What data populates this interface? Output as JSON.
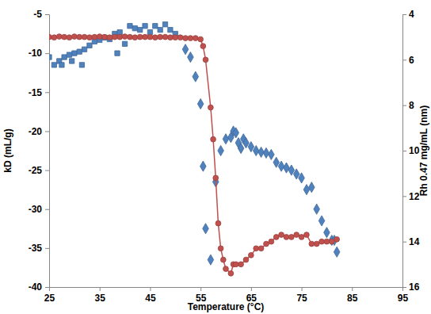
{
  "chart_data": {
    "type": "scatter",
    "x_label": "Temperature (°C)",
    "y_label": "kD (mL/g)",
    "y2_label": "Rh 0.47 mg/mL (nm)",
    "xlim": [
      25,
      95
    ],
    "xticks": [
      25,
      35,
      45,
      55,
      65,
      75,
      85,
      95
    ],
    "ylim": [
      -40,
      -5
    ],
    "yticks": [
      -40,
      -35,
      -30,
      -25,
      -20,
      -15,
      -10,
      -5
    ],
    "y2lim": [
      16,
      4
    ],
    "y2ticks": [
      4,
      6,
      8,
      10,
      12,
      14,
      16
    ],
    "grid": false,
    "series": [
      {
        "type": "scatter",
        "marker": "square",
        "color": "#4f81bd",
        "x": [
          25,
          26,
          27,
          27.5,
          28,
          29,
          29.5,
          30,
          31,
          31.5,
          32,
          33,
          34,
          35,
          36,
          37,
          38,
          38.5,
          39,
          40,
          41,
          42,
          43,
          44,
          45,
          46,
          47,
          48,
          49,
          50
        ],
        "values": [
          -10.5,
          -11.5,
          -11,
          -11.5,
          -10.5,
          -10.2,
          -11,
          -10,
          -9.8,
          -11.5,
          -9.5,
          -9,
          -8.5,
          -8.3,
          -8,
          -8.2,
          -7.5,
          -10,
          -7.3,
          -8.8,
          -6.5,
          -6.8,
          -7,
          -6.5,
          -7.3,
          -6.5,
          -7,
          -6.3,
          -7,
          -7.5
        ]
      },
      {
        "type": "scatter",
        "marker": "diamond",
        "color": "#4f81bd",
        "x": [
          52,
          53,
          54,
          55,
          55.5,
          56,
          57,
          58,
          59,
          60,
          61,
          61.5,
          62,
          62.5,
          63,
          63.5,
          64,
          65,
          66,
          67,
          68,
          69,
          70,
          71,
          72,
          73,
          74,
          75,
          76,
          77,
          78,
          79,
          80,
          81,
          81.5,
          82
        ],
        "values": [
          -9.5,
          -10.5,
          -13,
          -16.5,
          -24.5,
          -32.5,
          -36.5,
          -26.5,
          -22.5,
          -21,
          -20.8,
          -20,
          -20.2,
          -21.5,
          -22.2,
          -21,
          -21.5,
          -22,
          -22.5,
          -22.7,
          -22.8,
          -23,
          -24,
          -24.5,
          -24.7,
          -25,
          -25.5,
          -26,
          -27.5,
          -27.2,
          -30,
          -31.5,
          -33,
          -34,
          -34,
          -35.5
        ]
      },
      {
        "type": "line",
        "marker": "circle",
        "line_style": "solid",
        "color": "#c0504d",
        "axis": "y2",
        "x": [
          25,
          26,
          27,
          28,
          29,
          30,
          31,
          32,
          33,
          34,
          35,
          36,
          37,
          38,
          39,
          40,
          41,
          42,
          43,
          44,
          45,
          46,
          47,
          48,
          49,
          50,
          51,
          52,
          53,
          54,
          55,
          55.5,
          56,
          57,
          57.5,
          58,
          58.5,
          59,
          59.5,
          60,
          61,
          61.5,
          62,
          63,
          64,
          65,
          66,
          67,
          68,
          69,
          70,
          71,
          72,
          73,
          74,
          75,
          76,
          77,
          78,
          79,
          80,
          81,
          82
        ],
        "values": [
          5.0,
          5.02,
          4.98,
          5.0,
          5.02,
          4.98,
          5.0,
          5.0,
          5.02,
          5.0,
          4.98,
          5.0,
          5.02,
          5.0,
          5.0,
          4.98,
          5.0,
          5.02,
          5.0,
          5.0,
          5.0,
          5.02,
          5.0,
          5.0,
          5.02,
          5.02,
          5.02,
          5.05,
          5.05,
          5.05,
          5.1,
          5.4,
          6.0,
          8.1,
          9.5,
          11.2,
          13.2,
          14.3,
          14.8,
          15.2,
          15.4,
          15.0,
          15.0,
          15.0,
          14.8,
          14.6,
          14.3,
          14.3,
          14.1,
          14.0,
          13.8,
          13.7,
          13.8,
          13.8,
          13.7,
          13.8,
          13.7,
          14.1,
          14.1,
          14.0,
          14.0,
          14.0,
          13.9
        ]
      }
    ]
  }
}
